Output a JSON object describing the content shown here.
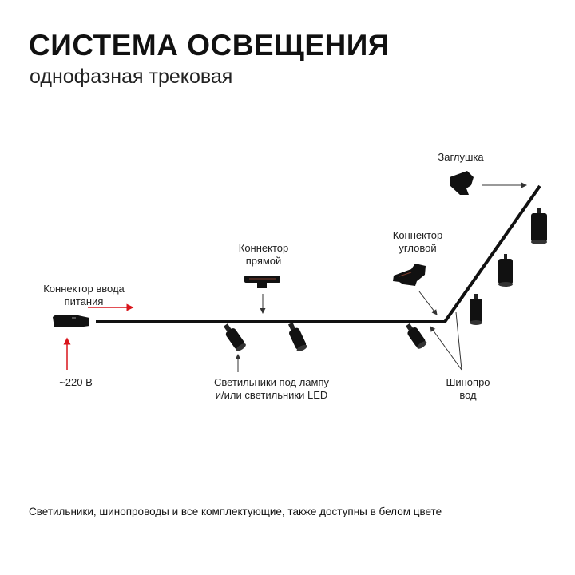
{
  "header": {
    "title": "СИСТЕМА ОСВЕЩЕНИЯ",
    "subtitle": "однофазная трековая"
  },
  "labels": {
    "end_cap": "Заглушка",
    "corner_connector": [
      "Коннектор",
      "угловой"
    ],
    "straight_connector": [
      "Коннектор",
      "прямой"
    ],
    "power_connector": [
      "Коннектор ввода",
      "питания"
    ],
    "voltage": "~220 В",
    "lamps": [
      "Светильники под лампу",
      "и/или светильники LED"
    ],
    "track": [
      "Шинопро",
      "вод"
    ]
  },
  "footer": "Светильники, шинопроводы и все комплектующие, также доступны в белом цвете",
  "colors": {
    "power_arrow": "#d9141b",
    "track": "#111111",
    "pointer": "#333333"
  }
}
